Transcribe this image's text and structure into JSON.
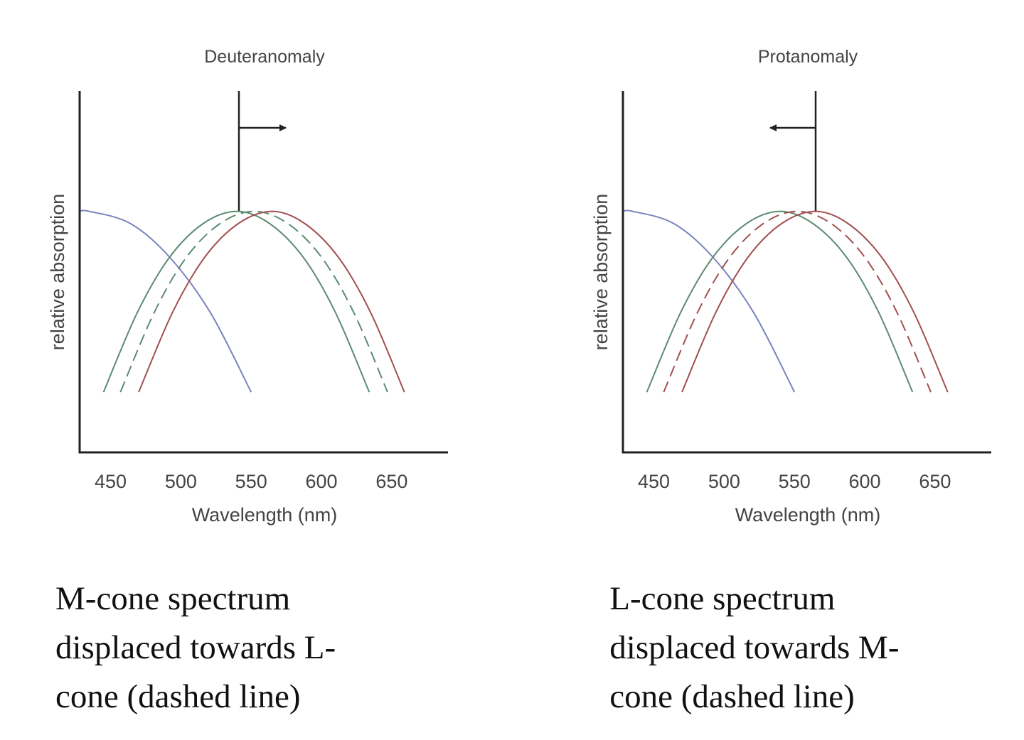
{
  "chart_data": [
    {
      "type": "line",
      "title": "Deuteranomaly",
      "xlabel": "Wavelength (nm)",
      "ylabel": "relative absorption",
      "xlim": [
        428,
        690
      ],
      "ylim": [
        0,
        1.5
      ],
      "xticks": [
        450,
        500,
        550,
        600,
        650
      ],
      "series": [
        {
          "color": "#7a84bd",
          "dashed": false,
          "x": [
            428,
            435,
            464,
            492,
            521,
            550
          ],
          "values": [
            1.0,
            1.0,
            0.95,
            0.81,
            0.58,
            0.25
          ]
        },
        {
          "color": "#5b8b70",
          "dashed": false,
          "x": [
            445,
            469,
            492,
            516,
            540,
            563,
            587,
            610,
            634
          ],
          "values": [
            0.25,
            0.58,
            0.81,
            0.95,
            1.0,
            0.95,
            0.81,
            0.58,
            0.25
          ]
        },
        {
          "color": "#5b8b70",
          "dashed": true,
          "x": [
            457,
            481,
            504,
            528,
            552,
            576,
            600,
            623,
            647
          ],
          "values": [
            0.25,
            0.58,
            0.81,
            0.95,
            1.0,
            0.95,
            0.81,
            0.58,
            0.25
          ]
        },
        {
          "color": "#a24f50",
          "dashed": false,
          "x": [
            470,
            494,
            517,
            541,
            565,
            588,
            612,
            635,
            659
          ],
          "values": [
            0.25,
            0.58,
            0.81,
            0.95,
            1.0,
            0.95,
            0.81,
            0.58,
            0.25
          ]
        }
      ],
      "caption": [
        "M-cone spectrum",
        "displaced towards L-",
        "cone (dashed line)"
      ]
    },
    {
      "type": "line",
      "title": "Protanomaly",
      "xlabel": "Wavelength (nm)",
      "ylabel": "relative absorption",
      "xlim": [
        428,
        690
      ],
      "ylim": [
        0,
        1.5
      ],
      "xticks": [
        450,
        500,
        550,
        600,
        650
      ],
      "series": [
        {
          "color": "#7a84bd",
          "dashed": false,
          "x": [
            428,
            435,
            464,
            492,
            521,
            550
          ],
          "values": [
            1.0,
            1.0,
            0.95,
            0.81,
            0.58,
            0.25
          ]
        },
        {
          "color": "#5b8b70",
          "dashed": false,
          "x": [
            445,
            469,
            492,
            516,
            540,
            563,
            587,
            610,
            634
          ],
          "values": [
            0.25,
            0.58,
            0.81,
            0.95,
            1.0,
            0.95,
            0.81,
            0.58,
            0.25
          ]
        },
        {
          "color": "#a24f50",
          "dashed": true,
          "x": [
            457,
            481,
            504,
            528,
            552,
            576,
            600,
            623,
            647
          ],
          "values": [
            0.25,
            0.58,
            0.81,
            0.95,
            1.0,
            0.95,
            0.81,
            0.58,
            0.25
          ]
        },
        {
          "color": "#a24f50",
          "dashed": false,
          "x": [
            470,
            494,
            517,
            541,
            565,
            588,
            612,
            635,
            659
          ],
          "values": [
            0.25,
            0.58,
            0.81,
            0.95,
            1.0,
            0.95,
            0.81,
            0.58,
            0.25
          ]
        }
      ],
      "caption": [
        "L-cone spectrum",
        "displaced towards M-",
        "cone (dashed line)"
      ]
    }
  ]
}
